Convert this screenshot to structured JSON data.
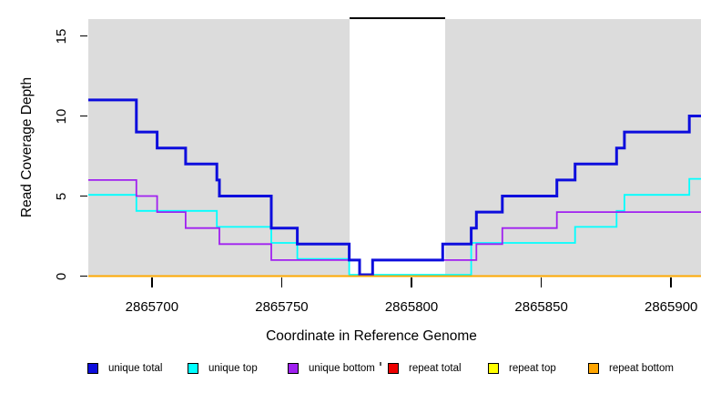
{
  "chart_data": {
    "type": "line",
    "subtype": "step",
    "title": "",
    "xlabel": "Coordinate in Reference Genome",
    "ylabel": "Read Coverage Depth",
    "xlim": [
      2865675.5,
      2865911.5
    ],
    "ylim": [
      0,
      16
    ],
    "xticks": [
      "2865700",
      "2865750",
      "2865800",
      "2865850",
      "2865900"
    ],
    "xtick_values": [
      2865700,
      2865750,
      2865800,
      2865850,
      2865900
    ],
    "yticks": [
      "0",
      "5",
      "10",
      "15"
    ],
    "ytick_values": [
      0,
      5,
      10,
      15
    ],
    "grid": false,
    "panel_background": "#dcdcdc",
    "masked_region": {
      "x_start": 2865776,
      "x_end": 2865813,
      "fill": "#ffffff",
      "cap_color": "#000000"
    },
    "x_step_edges": [
      2865675.5,
      2865694,
      2865702,
      2865713,
      2865725,
      2865726,
      2865746,
      2865756,
      2865776,
      2865780,
      2865785,
      2865812,
      2865823,
      2865825,
      2865835,
      2865856,
      2865863,
      2865879,
      2865882,
      2865907,
      2865911.5
    ],
    "series": [
      {
        "name": "unique total",
        "color": "#0d0ddd",
        "stroke_width": 3,
        "values": [
          11,
          9,
          8,
          7,
          6,
          5,
          3,
          2,
          1,
          0,
          1,
          2,
          3,
          4,
          5,
          6,
          7,
          8,
          9,
          10
        ]
      },
      {
        "name": "unique top",
        "color": "#00ffff",
        "stroke_width": 1.8,
        "values": [
          5,
          4,
          4,
          4,
          3,
          3,
          2,
          1,
          0,
          0,
          0,
          0,
          2,
          2,
          2,
          2,
          3,
          4,
          5,
          6
        ]
      },
      {
        "name": "unique bottom",
        "color": "#a020f0",
        "stroke_width": 1.8,
        "values": [
          6,
          5,
          4,
          3,
          3,
          2,
          1,
          1,
          1,
          0,
          1,
          1,
          1,
          2,
          3,
          4,
          4,
          4,
          4,
          4
        ]
      },
      {
        "name": "repeat total",
        "color": "#ee0000",
        "stroke_width": 1.7,
        "values": [
          0,
          0,
          0,
          0,
          0,
          0,
          0,
          0,
          0,
          0,
          0,
          0,
          0,
          0,
          0,
          0,
          0,
          0,
          0,
          0
        ]
      },
      {
        "name": "repeat top",
        "color": "#ffff00",
        "stroke_width": 1.7,
        "values": [
          0,
          0,
          0,
          0,
          0,
          0,
          0,
          0,
          0,
          0,
          0,
          0,
          0,
          0,
          0,
          0,
          0,
          0,
          0,
          0
        ]
      },
      {
        "name": "repeat bottom",
        "color": "#ffa500",
        "stroke_width": 1.7,
        "values": [
          0,
          0,
          0,
          0,
          0,
          0,
          0,
          0,
          0,
          0,
          0,
          0,
          0,
          0,
          0,
          0,
          0,
          0,
          0,
          0
        ]
      }
    ],
    "legend": {
      "position": "bottom",
      "items": [
        {
          "label": "unique total",
          "color": "#0d0ddd"
        },
        {
          "label": "unique top",
          "color": "#00ffff"
        },
        {
          "label": "unique bottom",
          "color": "#a020f0"
        },
        {
          "label": "repeat total",
          "color": "#ee0000"
        },
        {
          "label": "repeat top",
          "color": "#ffff00"
        },
        {
          "label": "repeat bottom",
          "color": "#ffa500"
        }
      ]
    }
  }
}
